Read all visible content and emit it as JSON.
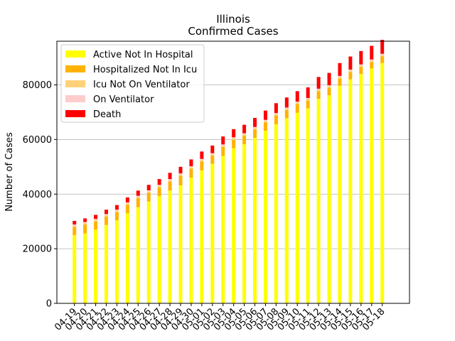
{
  "chart_data": {
    "type": "bar",
    "stacked": true,
    "title": "Illinois",
    "subtitle": "Confirmed Cases",
    "xlabel": "",
    "ylabel": "Number of Cases",
    "ylim": [
      0,
      96000
    ],
    "yticks": [
      0,
      20000,
      40000,
      60000,
      80000
    ],
    "grid": "y",
    "legend_position": "top-left",
    "categories": [
      "04-19",
      "04-20",
      "04-21",
      "04-22",
      "04-23",
      "04-24",
      "04-25",
      "04-26",
      "04-27",
      "04-28",
      "04-29",
      "04-30",
      "05-01",
      "05-02",
      "05-03",
      "05-04",
      "05-05",
      "05-06",
      "05-07",
      "05-08",
      "05-09",
      "05-10",
      "05-11",
      "05-12",
      "05-13",
      "05-14",
      "05-15",
      "05-16",
      "05-17",
      "05-18"
    ],
    "series": [
      {
        "name": "Active Not In Hospital",
        "color": "#ffff00",
        "values": [
          25000,
          25600,
          27000,
          28700,
          30400,
          33000,
          35200,
          37300,
          39300,
          41300,
          43200,
          46000,
          48700,
          51100,
          54000,
          56800,
          58300,
          60600,
          63200,
          65600,
          67800,
          69800,
          71400,
          74900,
          76200,
          79700,
          82000,
          84000,
          86000,
          88000
        ]
      },
      {
        "name": "Hospitalized Not In Icu",
        "color": "#ffb300",
        "values": [
          3000,
          3300,
          3000,
          3100,
          3000,
          3100,
          3300,
          3200,
          3200,
          3300,
          3500,
          3300,
          3300,
          3000,
          3300,
          3100,
          3100,
          3100,
          3100,
          3200,
          3000,
          3200,
          2900,
          2800,
          2800,
          2700,
          2700,
          2600,
          2400,
          2500
        ]
      },
      {
        "name": "Icu Not On Ventilator",
        "color": "#ffd27a",
        "values": [
          500,
          500,
          500,
          500,
          500,
          500,
          500,
          500,
          500,
          500,
          500,
          500,
          500,
          500,
          500,
          500,
          500,
          500,
          500,
          500,
          500,
          500,
          500,
          500,
          500,
          500,
          500,
          500,
          500,
          500
        ]
      },
      {
        "name": "On Ventilator",
        "color": "#ffcccc",
        "values": [
          400,
          400,
          400,
          400,
          400,
          400,
          400,
          400,
          400,
          400,
          400,
          400,
          400,
          400,
          400,
          400,
          400,
          400,
          400,
          400,
          400,
          400,
          400,
          400,
          400,
          400,
          400,
          400,
          400,
          400
        ]
      },
      {
        "name": "Death",
        "color": "#ff0000",
        "values": [
          1300,
          1300,
          1500,
          1600,
          1700,
          1800,
          1900,
          2000,
          2100,
          2300,
          2400,
          2500,
          2700,
          2800,
          2900,
          3000,
          3100,
          3300,
          3400,
          3600,
          3700,
          3800,
          3900,
          4300,
          4500,
          4700,
          4800,
          4900,
          5000,
          5100
        ]
      }
    ]
  }
}
